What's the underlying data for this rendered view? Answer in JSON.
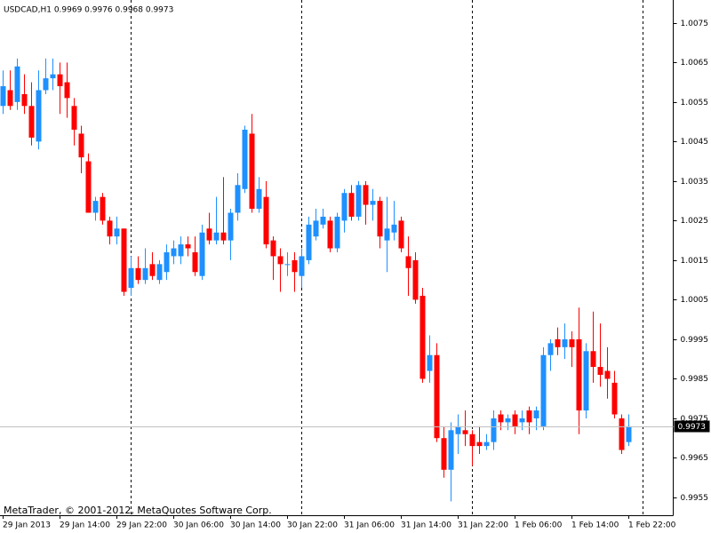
{
  "chart_data": {
    "type": "candlestick",
    "title": "USDCAD,H1  0.9969 0.9976 0.9968 0.9973",
    "footer": "MetaTrader, © 2001-2012, MetaQuotes Software Corp.",
    "categories": [
      "29 Jan 2013",
      null,
      null,
      null,
      null,
      null,
      null,
      null,
      "29 Jan 14:00",
      null,
      null,
      null,
      null,
      null,
      null,
      null,
      "29 Jan 22:00",
      null,
      null,
      null,
      null,
      null,
      null,
      null,
      "30 Jan 06:00",
      null,
      null,
      null,
      null,
      null,
      null,
      null,
      "30 Jan 14:00",
      null,
      null,
      null,
      null,
      null,
      null,
      null,
      "30 Jan 22:00",
      null,
      null,
      null,
      null,
      null,
      null,
      null,
      "31 Jan 06:00",
      null,
      null,
      null,
      null,
      null,
      null,
      null,
      "31 Jan 14:00",
      null,
      null,
      null,
      null,
      null,
      null,
      null,
      "31 Jan 22:00",
      null,
      null,
      null,
      null,
      null,
      null,
      null,
      "1 Feb 06:00",
      null,
      null,
      null,
      null,
      null,
      null,
      null,
      "1 Feb 14:00",
      null,
      null,
      null,
      null,
      null,
      null,
      null,
      "1 Feb 22:00"
    ],
    "open": [
      1.0054,
      1.0058,
      1.0055,
      1.0057,
      1.0054,
      1.0045,
      1.0058,
      1.0061,
      1.0062,
      1.006,
      1.0054,
      1.0047,
      1.004,
      1.0027,
      1.0031,
      1.0025,
      1.0021,
      1.0023,
      1.0008,
      1.0013,
      1.001,
      1.0014,
      1.001,
      1.0012,
      1.0016,
      1.0016,
      1.0019,
      1.0017,
      1.0011,
      1.0023,
      1.002,
      1.0022,
      1.002,
      1.0027,
      1.0033,
      1.0047,
      1.0028,
      1.0031,
      1.002,
      1.0016,
      1.0014,
      1.0015,
      1.0011,
      1.0015,
      1.0021,
      1.0024,
      1.0025,
      1.0018,
      1.0025,
      1.0032,
      1.0026,
      1.0034,
      1.0029,
      1.003,
      1.002,
      1.0022,
      1.0025,
      1.0016,
      1.0015,
      1.0006,
      0.9987,
      0.9991,
      0.997,
      0.9962,
      0.9971,
      0.9972,
      0.9971,
      0.9969,
      0.9968,
      0.9969,
      0.9976,
      0.9974,
      0.9976,
      0.9974,
      0.9977,
      0.9975,
      0.9973,
      0.9991,
      0.9995,
      0.9993,
      0.9995,
      0.9995,
      0.9977,
      0.9992,
      0.9988,
      0.9987,
      0.9984,
      0.9975,
      0.9969
    ],
    "high": [
      1.0063,
      1.0063,
      1.0066,
      1.0062,
      1.006,
      1.0063,
      1.0066,
      1.0066,
      1.0065,
      1.0065,
      1.0056,
      1.0049,
      1.0042,
      1.0031,
      1.0032,
      1.0026,
      1.0026,
      1.0023,
      1.0016,
      1.0016,
      1.0018,
      1.0017,
      1.0015,
      1.0019,
      1.002,
      1.0021,
      1.0021,
      1.0021,
      1.0024,
      1.0027,
      1.0031,
      1.0036,
      1.0028,
      1.0037,
      1.0049,
      1.0052,
      1.0036,
      1.0035,
      1.0021,
      1.0018,
      1.0017,
      1.0017,
      1.0018,
      1.0026,
      1.0028,
      1.0028,
      1.0026,
      1.0027,
      1.0033,
      1.0034,
      1.0035,
      1.0035,
      1.0033,
      1.0031,
      1.0031,
      1.003,
      1.0026,
      1.0021,
      1.0017,
      1.0008,
      0.9996,
      0.9994,
      0.9973,
      0.9974,
      0.9976,
      0.9977,
      0.9972,
      0.9973,
      0.9971,
      0.9977,
      0.9977,
      0.9976,
      0.9977,
      0.9977,
      0.9978,
      0.9978,
      0.9993,
      0.9995,
      0.9998,
      0.9999,
      0.9997,
      1.0003,
      0.9994,
      1.0002,
      0.9999,
      0.9993,
      0.9987,
      0.9976,
      0.9976
    ],
    "low": [
      1.0052,
      1.0053,
      1.0053,
      1.0052,
      1.0044,
      1.0043,
      1.0057,
      1.0058,
      1.0052,
      1.0051,
      1.0044,
      1.0037,
      1.0027,
      1.0025,
      1.0024,
      1.0019,
      1.0019,
      1.0006,
      1.0006,
      1.0009,
      1.0009,
      1.001,
      1.0009,
      1.001,
      1.0014,
      1.0014,
      1.0016,
      1.0011,
      1.001,
      1.0019,
      1.0019,
      1.0019,
      1.0015,
      1.0025,
      1.0032,
      1.0027,
      1.0027,
      1.0018,
      1.001,
      1.0007,
      1.0011,
      1.0007,
      1.0008,
      1.0014,
      1.002,
      1.0023,
      1.0017,
      1.0017,
      1.0022,
      1.0025,
      1.0025,
      1.0024,
      1.0025,
      1.0018,
      1.0012,
      1.002,
      1.0017,
      1.0006,
      1.0004,
      0.9984,
      0.9984,
      0.9969,
      0.996,
      0.9954,
      0.9966,
      0.9968,
      0.9963,
      0.9966,
      0.9967,
      0.9967,
      0.9972,
      0.9972,
      0.9971,
      0.9972,
      0.9971,
      0.9972,
      0.9972,
      0.9987,
      0.9991,
      0.999,
      0.9988,
      0.9971,
      0.9975,
      0.9984,
      0.9983,
      0.998,
      0.9975,
      0.9966,
      0.9968
    ],
    "close": [
      1.0059,
      1.0054,
      1.0064,
      1.0054,
      1.0046,
      1.0058,
      1.0061,
      1.0062,
      1.0059,
      1.0056,
      1.0048,
      1.0041,
      1.0027,
      1.003,
      1.0025,
      1.0021,
      1.0023,
      1.0007,
      1.0013,
      1.001,
      1.0013,
      1.0011,
      1.0014,
      1.0017,
      1.0018,
      1.0019,
      1.0018,
      1.0012,
      1.0022,
      1.002,
      1.0022,
      1.002,
      1.0027,
      1.0034,
      1.0048,
      1.0028,
      1.0033,
      1.0019,
      1.0016,
      1.0014,
      1.0014,
      1.0012,
      1.0016,
      1.0024,
      1.0025,
      1.0026,
      1.0018,
      1.0026,
      1.0032,
      1.0026,
      1.0034,
      1.0029,
      1.003,
      1.0021,
      1.0023,
      1.0024,
      1.0018,
      1.0013,
      1.0005,
      0.9985,
      0.9991,
      0.997,
      0.9962,
      0.9972,
      0.9973,
      0.9971,
      0.9968,
      0.9968,
      0.9969,
      0.9975,
      0.9974,
      0.9975,
      0.9973,
      0.9975,
      0.9974,
      0.9977,
      0.9991,
      0.9994,
      0.9993,
      0.9995,
      0.9993,
      0.9977,
      0.9992,
      0.9988,
      0.9986,
      0.9985,
      0.9976,
      0.9967,
      0.9973
    ],
    "up_color": "#1e90ff",
    "down_color": "#ff0000",
    "current_price": 0.9973,
    "ylim": [
      0.99505,
      1.00808
    ],
    "yticks": [
      1.0075,
      1.0065,
      1.0055,
      1.0045,
      1.0035,
      1.0025,
      1.0015,
      1.0005,
      0.9995,
      0.9985,
      0.9975,
      0.9965,
      0.9955
    ]
  }
}
